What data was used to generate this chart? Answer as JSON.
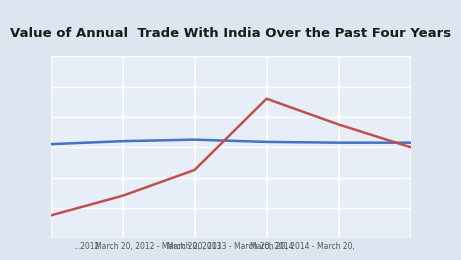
{
  "title": "Value of Annual  Trade With India Over the Past Four Years",
  "x_tick_labels": [
    "...2012",
    "March 20, 2012 - March 20, 2013",
    "March 20, 2013 - March 20, 2014",
    "March 20, 2014 - March 20,",
    ""
  ],
  "x_positions": [
    0,
    1,
    2,
    3,
    4,
    5
  ],
  "x_tick_positions": [
    0.5,
    1.5,
    2.5,
    3.5,
    4.5
  ],
  "blue_line_x": [
    0,
    1,
    2,
    3,
    4,
    5
  ],
  "blue_line_y": [
    6.2,
    6.4,
    6.5,
    6.35,
    6.3,
    6.3
  ],
  "red_line_x": [
    0,
    1,
    2,
    3,
    4,
    5
  ],
  "red_line_y": [
    1.5,
    2.8,
    4.5,
    9.2,
    7.5,
    6.0
  ],
  "blue_color": "#4472C4",
  "red_color": "#C0504D",
  "bg_color": "#DCE6F1",
  "title_bg": "#B8CCE4",
  "plot_bg": "#E8EEF7",
  "grid_color": "#FFFFFF",
  "ylim": [
    0,
    12
  ],
  "xlim": [
    0,
    5
  ],
  "title_fontsize": 9.5,
  "label_fontsize": 5.5
}
